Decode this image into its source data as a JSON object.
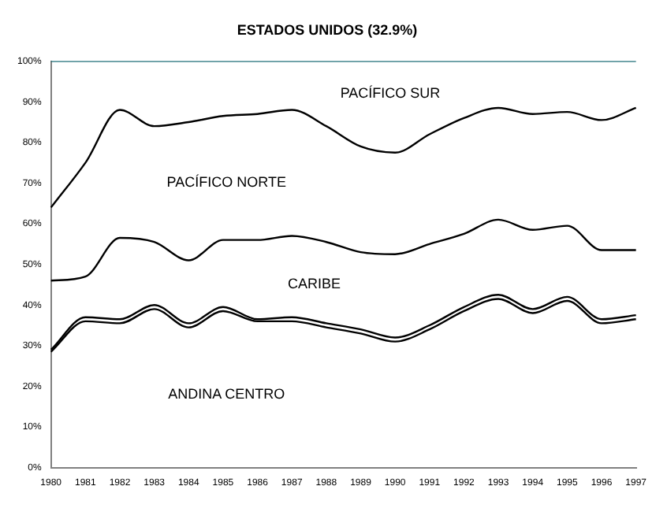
{
  "chart_data": {
    "type": "line",
    "title": "ESTADOS UNIDOS (32.9%)",
    "categories": [
      "1980",
      "1981",
      "1982",
      "1983",
      "1984",
      "1985",
      "1986",
      "1987",
      "1988",
      "1989",
      "1990",
      "1991",
      "1992",
      "1993",
      "1994",
      "1995",
      "1996",
      "1997"
    ],
    "series": [
      {
        "color": "#000000",
        "values": [
          28.5,
          36,
          35.5,
          39,
          34.5,
          38.5,
          36,
          36,
          34.5,
          33,
          31,
          34,
          38.5,
          41.5,
          38,
          41,
          35.5,
          36.5
        ]
      },
      {
        "color": "#000000",
        "values": [
          29,
          37,
          36.5,
          40,
          35.5,
          39.5,
          36.5,
          37,
          35.5,
          34,
          32,
          35,
          39.5,
          42.5,
          39,
          42,
          36.5,
          37.5
        ]
      },
      {
        "color": "#000000",
        "values": [
          46,
          47,
          56.5,
          55.5,
          51,
          56,
          56,
          57,
          55.5,
          53,
          52.5,
          55,
          57.5,
          61,
          58.5,
          59.5,
          53.5,
          53.5
        ]
      },
      {
        "color": "#000000",
        "values": [
          64,
          75,
          88,
          84,
          85,
          86.5,
          87,
          88,
          84,
          79,
          77.5,
          82,
          86,
          88.5,
          87,
          87.5,
          85.5,
          88.5
        ]
      },
      {
        "color": "#1f6f78",
        "values": [
          100,
          100,
          100,
          100,
          100,
          100,
          100,
          100,
          100,
          100,
          100,
          100,
          100,
          100,
          100,
          100,
          100,
          100
        ]
      }
    ],
    "ylim": [
      0,
      100
    ],
    "yticks": [
      {
        "value": 0,
        "label": "0%"
      },
      {
        "value": 10,
        "label": "10%"
      },
      {
        "value": 20,
        "label": "20%"
      },
      {
        "value": 30,
        "label": "30%"
      },
      {
        "value": 40,
        "label": "40%"
      },
      {
        "value": 50,
        "label": "50%"
      },
      {
        "value": 60,
        "label": "60%"
      },
      {
        "value": 70,
        "label": "70%"
      },
      {
        "value": 80,
        "label": "80%"
      },
      {
        "value": 90,
        "label": "90%"
      },
      {
        "value": 100,
        "label": "100%"
      }
    ],
    "annotations": [
      "PACÍFICO SUR",
      "PACÍFICO NORTE",
      "CARIBE",
      "ANDINA CENTRO"
    ],
    "grid": false,
    "legend": false,
    "marker": "none",
    "line_style": "solid"
  }
}
